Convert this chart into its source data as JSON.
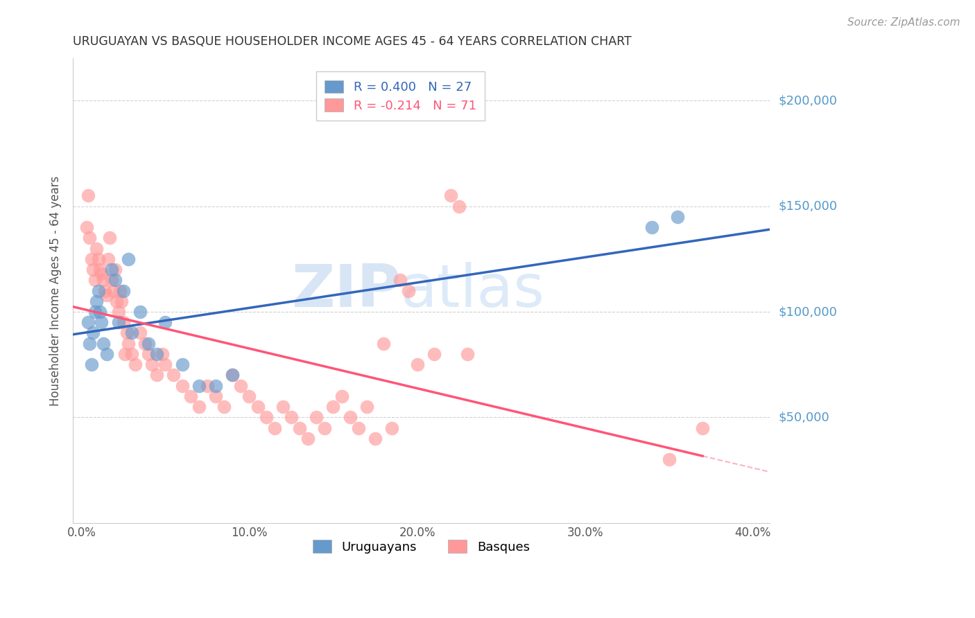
{
  "title": "URUGUAYAN VS BASQUE HOUSEHOLDER INCOME AGES 45 - 64 YEARS CORRELATION CHART",
  "source": "Source: ZipAtlas.com",
  "ylabel": "Householder Income Ages 45 - 64 years",
  "xlabel_ticks": [
    "0.0%",
    "10.0%",
    "20.0%",
    "30.0%",
    "40.0%"
  ],
  "xlabel_vals": [
    0.0,
    0.1,
    0.2,
    0.3,
    0.4
  ],
  "ytick_labels": [
    "$50,000",
    "$100,000",
    "$150,000",
    "$200,000"
  ],
  "ytick_vals": [
    50000,
    100000,
    150000,
    200000
  ],
  "ylim": [
    0,
    220000
  ],
  "xlim": [
    -0.005,
    0.41
  ],
  "uruguayan_color": "#6699CC",
  "basque_color": "#FF9999",
  "uruguayan_line_color": "#3366BB",
  "basque_line_color": "#FF5577",
  "watermark_color": "#DDEEFF",
  "uruguayan_x": [
    0.004,
    0.005,
    0.006,
    0.007,
    0.008,
    0.009,
    0.01,
    0.011,
    0.012,
    0.013,
    0.015,
    0.018,
    0.02,
    0.022,
    0.025,
    0.028,
    0.03,
    0.035,
    0.04,
    0.045,
    0.05,
    0.06,
    0.07,
    0.08,
    0.09,
    0.34,
    0.355
  ],
  "uruguayan_y": [
    95000,
    85000,
    75000,
    90000,
    100000,
    105000,
    110000,
    100000,
    95000,
    85000,
    80000,
    120000,
    115000,
    95000,
    110000,
    125000,
    90000,
    100000,
    85000,
    80000,
    95000,
    75000,
    65000,
    65000,
    70000,
    140000,
    145000
  ],
  "basque_x": [
    0.003,
    0.004,
    0.005,
    0.006,
    0.007,
    0.008,
    0.009,
    0.01,
    0.011,
    0.012,
    0.013,
    0.014,
    0.015,
    0.016,
    0.017,
    0.018,
    0.019,
    0.02,
    0.021,
    0.022,
    0.023,
    0.024,
    0.025,
    0.026,
    0.027,
    0.028,
    0.03,
    0.032,
    0.035,
    0.038,
    0.04,
    0.042,
    0.045,
    0.048,
    0.05,
    0.055,
    0.06,
    0.065,
    0.07,
    0.075,
    0.08,
    0.085,
    0.09,
    0.095,
    0.1,
    0.105,
    0.11,
    0.115,
    0.12,
    0.125,
    0.13,
    0.135,
    0.14,
    0.145,
    0.15,
    0.155,
    0.16,
    0.165,
    0.17,
    0.175,
    0.18,
    0.185,
    0.19,
    0.195,
    0.2,
    0.21,
    0.22,
    0.225,
    0.23,
    0.35,
    0.37
  ],
  "basque_y": [
    140000,
    155000,
    135000,
    125000,
    120000,
    115000,
    130000,
    125000,
    120000,
    118000,
    115000,
    110000,
    108000,
    125000,
    135000,
    115000,
    110000,
    120000,
    105000,
    100000,
    110000,
    105000,
    95000,
    80000,
    90000,
    85000,
    80000,
    75000,
    90000,
    85000,
    80000,
    75000,
    70000,
    80000,
    75000,
    70000,
    65000,
    60000,
    55000,
    65000,
    60000,
    55000,
    70000,
    65000,
    60000,
    55000,
    50000,
    45000,
    55000,
    50000,
    45000,
    40000,
    50000,
    45000,
    55000,
    60000,
    50000,
    45000,
    55000,
    40000,
    85000,
    45000,
    115000,
    110000,
    75000,
    80000,
    155000,
    150000,
    80000,
    30000,
    45000
  ]
}
